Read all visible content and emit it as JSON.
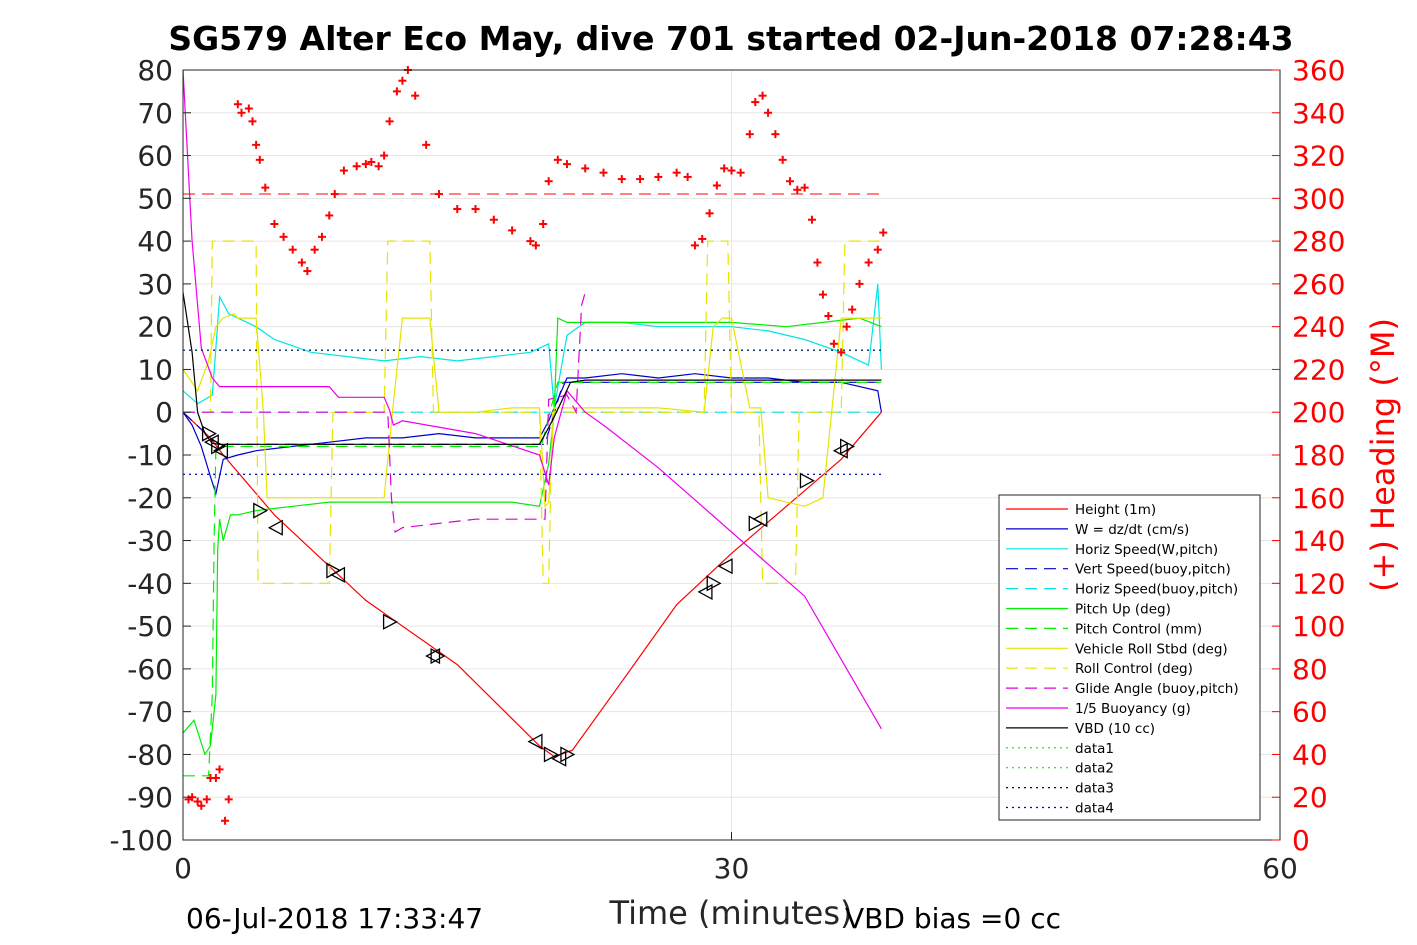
{
  "chart_data": {
    "type": "line",
    "title": "SG579 Alter Eco May, dive 701 started 02-Jun-2018 07:28:43",
    "xlabel": "Time (minutes)",
    "ylabel": "",
    "ylabel_right": "(+) Heading (°M)",
    "xlim": [
      0,
      60
    ],
    "ylim": [
      -100,
      80
    ],
    "ylim_right": [
      0,
      360
    ],
    "x_ticks": [
      "0",
      "30",
      "60"
    ],
    "y_ticks": [
      "80",
      "70",
      "60",
      "50",
      "40",
      "30",
      "20",
      "10",
      "0",
      "-10",
      "-20",
      "-30",
      "-40",
      "-50",
      "-60",
      "-70",
      "-80",
      "-90",
      "-100"
    ],
    "y_right_ticks": [
      "360",
      "340",
      "320",
      "300",
      "280",
      "260",
      "240",
      "220",
      "200",
      "180",
      "160",
      "140",
      "120",
      "100",
      "80",
      "60",
      "40",
      "20",
      "0"
    ],
    "grid": true,
    "legend_position": "lower-right",
    "footer_left": "06-Jul-2018 17:33:47",
    "footer_right": "VBD bias =0 cc",
    "series": [
      {
        "name": "Height (1m)",
        "color": "#ff0000",
        "style": "solid",
        "x": [
          0,
          1.5,
          2.2,
          5,
          10,
          15,
          19.5,
          20.3,
          21.3,
          24,
          27,
          30,
          33,
          36,
          38.2
        ],
        "y": [
          0,
          -6,
          -10,
          -24,
          -44,
          -59,
          -78,
          -80.5,
          -79,
          -63,
          -45,
          -33,
          -22,
          -11,
          0
        ]
      },
      {
        "name": "W = dz/dt (cm/s)",
        "color": "#0000cc",
        "style": "solid",
        "x": [
          0,
          0.5,
          1,
          1.5,
          1.8,
          2.2,
          3,
          4,
          6,
          8,
          10,
          12,
          14,
          16,
          18,
          19.5,
          20,
          20.5,
          21,
          22,
          24,
          26,
          28,
          30,
          32,
          34,
          36,
          38,
          38.2
        ],
        "y": [
          0,
          -3,
          -8,
          -15,
          -19,
          -11,
          -10,
          -9,
          -8,
          -7,
          -6,
          -6,
          -5,
          -6,
          -6,
          -6,
          -2,
          3,
          8,
          8,
          9,
          8,
          9,
          8,
          8,
          7,
          7,
          5,
          0
        ]
      },
      {
        "name": "Horiz Speed(W,pitch)",
        "color": "#00e5e5",
        "style": "solid",
        "x": [
          0,
          0.8,
          1.6,
          1.8,
          2.0,
          2.5,
          3,
          4,
          5,
          7,
          9,
          11,
          13,
          15,
          17,
          19,
          20,
          20.3,
          21,
          22,
          24,
          26,
          28,
          30,
          32,
          34,
          36,
          37.5,
          38,
          38.2
        ],
        "y": [
          5,
          2,
          4,
          15,
          27,
          23,
          22,
          20,
          17,
          14,
          13,
          12,
          13,
          12,
          13,
          14,
          16,
          1,
          18,
          21,
          21,
          20,
          20,
          20,
          19,
          17,
          14,
          11,
          30,
          10
        ]
      },
      {
        "name": "Vert Speed(buoy,pitch)",
        "color": "#0000cc",
        "style": "dashed",
        "x": [
          0,
          1.5,
          2,
          19.8,
          20.8,
          38.2
        ],
        "y": [
          0,
          -6,
          -7.5,
          -7.5,
          7,
          7
        ]
      },
      {
        "name": "Horiz Speed(buoy,pitch)",
        "color": "#00e5e5",
        "style": "dashed",
        "x": [
          0,
          38.2
        ],
        "y": [
          0,
          0
        ]
      },
      {
        "name": "Pitch Up (deg)",
        "color": "#00ee00",
        "style": "solid",
        "x": [
          0,
          0.6,
          1.2,
          1.5,
          1.8,
          1.9,
          2.0,
          2.2,
          2.6,
          3,
          4,
          6,
          8,
          10,
          12,
          14,
          16,
          18,
          19.5,
          20,
          20.3,
          20.5,
          21,
          24,
          27,
          30,
          33,
          35,
          37,
          38.2
        ],
        "y": [
          -75,
          -72,
          -80,
          -78,
          -66,
          -32,
          -25,
          -30,
          -24,
          -24,
          -23,
          -22,
          -21,
          -21,
          -21,
          -21,
          -21,
          -21,
          -22,
          -12,
          0,
          22,
          21,
          21,
          21,
          21,
          20,
          21,
          22,
          20
        ]
      },
      {
        "name": "Pitch Control (mm)",
        "color": "#00ee00",
        "style": "dashed",
        "x": [
          0,
          1.4,
          1.6,
          1.7,
          1.8,
          3,
          19.6,
          20.0,
          20.5,
          38.2
        ],
        "y": [
          -85,
          -85,
          -66,
          -30,
          -8,
          -8,
          -8,
          -1,
          7,
          7
        ]
      },
      {
        "name": "Vehicle Roll Stbd (deg)",
        "color": "#e5e500",
        "style": "solid",
        "x": [
          0,
          0.8,
          1.4,
          1.8,
          2.2,
          2.8,
          3,
          4,
          4.4,
          4.6,
          5,
          6,
          7,
          8,
          10,
          11,
          11.5,
          12,
          13,
          13.5,
          14,
          16,
          18,
          19.5,
          19.8,
          20,
          20.3,
          21,
          24,
          26,
          28.5,
          29,
          29.5,
          30,
          31,
          31.6,
          32,
          34,
          35,
          35.5,
          36,
          37,
          38.2
        ],
        "y": [
          10,
          5,
          12,
          20,
          22,
          23,
          22,
          22,
          0,
          -20,
          -20,
          -20,
          -20,
          -20,
          -20,
          -20,
          2,
          22,
          22,
          22,
          0,
          0,
          1,
          1,
          -22,
          -21,
          1,
          1,
          1,
          1,
          0,
          20,
          22,
          22,
          1,
          1,
          -20,
          -22,
          -20,
          1,
          22,
          22,
          22
        ]
      },
      {
        "name": "Roll Control (deg)",
        "color": "#e5e500",
        "style": "dashed",
        "x": [
          0,
          1.5,
          1.6,
          4,
          4.1,
          5,
          5.2,
          8,
          8.2,
          11,
          11.2,
          13.5,
          13.7,
          19.5,
          19.7,
          20,
          20.2,
          28.5,
          28.7,
          29.8,
          30,
          31.5,
          31.7,
          33.5,
          33.7,
          36,
          36.2,
          38.2
        ],
        "y": [
          0,
          0,
          40,
          40,
          -40,
          -40,
          -40,
          -40,
          0,
          0,
          40,
          40,
          0,
          0,
          -40,
          -40,
          0,
          0,
          40,
          40,
          0,
          0,
          -40,
          -40,
          0,
          0,
          40,
          40
        ]
      },
      {
        "name": "Glide Angle (buoy,pitch)",
        "color": "#dd00dd",
        "style": "dashed",
        "x": [
          0,
          0.5,
          1.5,
          11.2,
          11.4,
          11.6,
          12,
          14,
          16,
          18,
          19.8,
          20,
          21,
          21.5,
          21.8,
          22
        ],
        "y": [
          0,
          0,
          0,
          0,
          -20,
          -28,
          -27,
          -26,
          -25,
          -25,
          -25,
          3,
          4,
          0,
          25,
          28
        ]
      },
      {
        "name": "1/5 Buoyancy (g)",
        "color": "#ee00ee",
        "style": "solid",
        "x": [
          0,
          0.5,
          1,
          1.6,
          2.0,
          5,
          8,
          8.5,
          11,
          11.3,
          11.5,
          12,
          16,
          19.5,
          20,
          20.3,
          21,
          22,
          23,
          26,
          30,
          34,
          38.2
        ],
        "y": [
          80,
          40,
          15,
          8,
          6,
          6,
          6,
          3.5,
          3.5,
          0.5,
          -3,
          -2,
          -5,
          -10,
          -17,
          -6,
          5,
          0,
          -3,
          -13,
          -28,
          -43,
          -74
        ]
      },
      {
        "name": "VBD (10 cc)",
        "color": "#000000",
        "style": "solid",
        "x": [
          0,
          0.5,
          0.8,
          1.2,
          1.6,
          2.0,
          3,
          19.5,
          20.2,
          21.2,
          22,
          38.2
        ],
        "y": [
          28,
          14,
          0,
          -5,
          -7.3,
          -7.5,
          -7.5,
          -7.5,
          -2,
          7,
          7.5,
          7.5
        ]
      },
      {
        "name": "data1",
        "color": "#00ee00",
        "style": "dotted",
        "x": [
          0,
          38.2
        ],
        "y": [
          14.5,
          14.5
        ]
      },
      {
        "name": "data2",
        "color": "#00ee00",
        "style": "dotted",
        "x": [
          0,
          38.2
        ],
        "y": [
          -14.5,
          -14.5
        ]
      },
      {
        "name": "data3",
        "color": "#000066",
        "style": "dotted",
        "x": [
          0,
          38.2
        ],
        "y": [
          14.5,
          14.5
        ]
      },
      {
        "name": "data4",
        "color": "#0000cc",
        "style": "dotted",
        "x": [
          0,
          38.2
        ],
        "y": [
          -14.5,
          -14.5
        ]
      }
    ],
    "heading": {
      "axis": "right",
      "color": "#ff0000",
      "marker": "+",
      "mean": 302,
      "x": [
        0.3,
        0.5,
        0.8,
        1.0,
        1.3,
        1.5,
        1.8,
        2.0,
        2.3,
        2.5,
        3.0,
        3.2,
        3.6,
        3.8,
        4.0,
        4.2,
        4.5,
        5.0,
        5.5,
        6.0,
        6.5,
        6.8,
        7.2,
        7.6,
        8.0,
        8.3,
        8.8,
        9.5,
        10.0,
        10.3,
        10.7,
        11.0,
        11.3,
        11.7,
        12.0,
        12.3,
        12.7,
        13.3,
        14.0,
        15.0,
        16.0,
        17.0,
        18.0,
        19.0,
        19.3,
        19.7,
        20.0,
        20.5,
        21.0,
        22.0,
        23.0,
        24.0,
        25.0,
        26.0,
        27.0,
        27.6,
        28.0,
        28.4,
        28.8,
        29.2,
        29.6,
        30.0,
        30.5,
        31.0,
        31.3,
        31.7,
        32.0,
        32.4,
        32.8,
        33.2,
        33.6,
        34.0,
        34.4,
        34.7,
        35.0,
        35.3,
        35.6,
        36.0,
        36.3,
        36.6,
        37.0,
        37.5,
        38.0,
        38.3
      ],
      "y": [
        19,
        20,
        18,
        16,
        19,
        29,
        29,
        33,
        9,
        19,
        344,
        340,
        342,
        336,
        325,
        318,
        305,
        288,
        282,
        276,
        270,
        266,
        276,
        282,
        292,
        302,
        313,
        315,
        316,
        317,
        315,
        320,
        336,
        350,
        355,
        360,
        348,
        325,
        302,
        295,
        295,
        290,
        285,
        280,
        278,
        288,
        308,
        318,
        316,
        314,
        312,
        309,
        309,
        310,
        312,
        310,
        278,
        281,
        293,
        306,
        314,
        313,
        312,
        330,
        345,
        348,
        340,
        330,
        318,
        308,
        304,
        305,
        290,
        270,
        255,
        245,
        232,
        228,
        240,
        248,
        260,
        270,
        276,
        284
      ]
    },
    "markers": {
      "type": "triangle",
      "color": "#000000",
      "points": [
        {
          "x": 1.4,
          "y": -5
        },
        {
          "x": 1.6,
          "y": -7
        },
        {
          "x": 1.9,
          "y": -8
        },
        {
          "x": 2.1,
          "y": -9
        },
        {
          "x": 4.2,
          "y": -23
        },
        {
          "x": 5.1,
          "y": -27
        },
        {
          "x": 8.2,
          "y": -37
        },
        {
          "x": 8.5,
          "y": -38
        },
        {
          "x": 11.3,
          "y": -49
        },
        {
          "x": 13.7,
          "y": -57
        },
        {
          "x": 13.9,
          "y": -57
        },
        {
          "x": 19.3,
          "y": -77
        },
        {
          "x": 20.1,
          "y": -80
        },
        {
          "x": 20.6,
          "y": -81
        },
        {
          "x": 21.0,
          "y": -80
        },
        {
          "x": 28.6,
          "y": -42
        },
        {
          "x": 29.0,
          "y": -40
        },
        {
          "x": 29.7,
          "y": -36
        },
        {
          "x": 31.3,
          "y": -26
        },
        {
          "x": 31.6,
          "y": -25
        },
        {
          "x": 34.1,
          "y": -16
        },
        {
          "x": 36.0,
          "y": -9
        },
        {
          "x": 36.3,
          "y": -8
        }
      ]
    }
  }
}
